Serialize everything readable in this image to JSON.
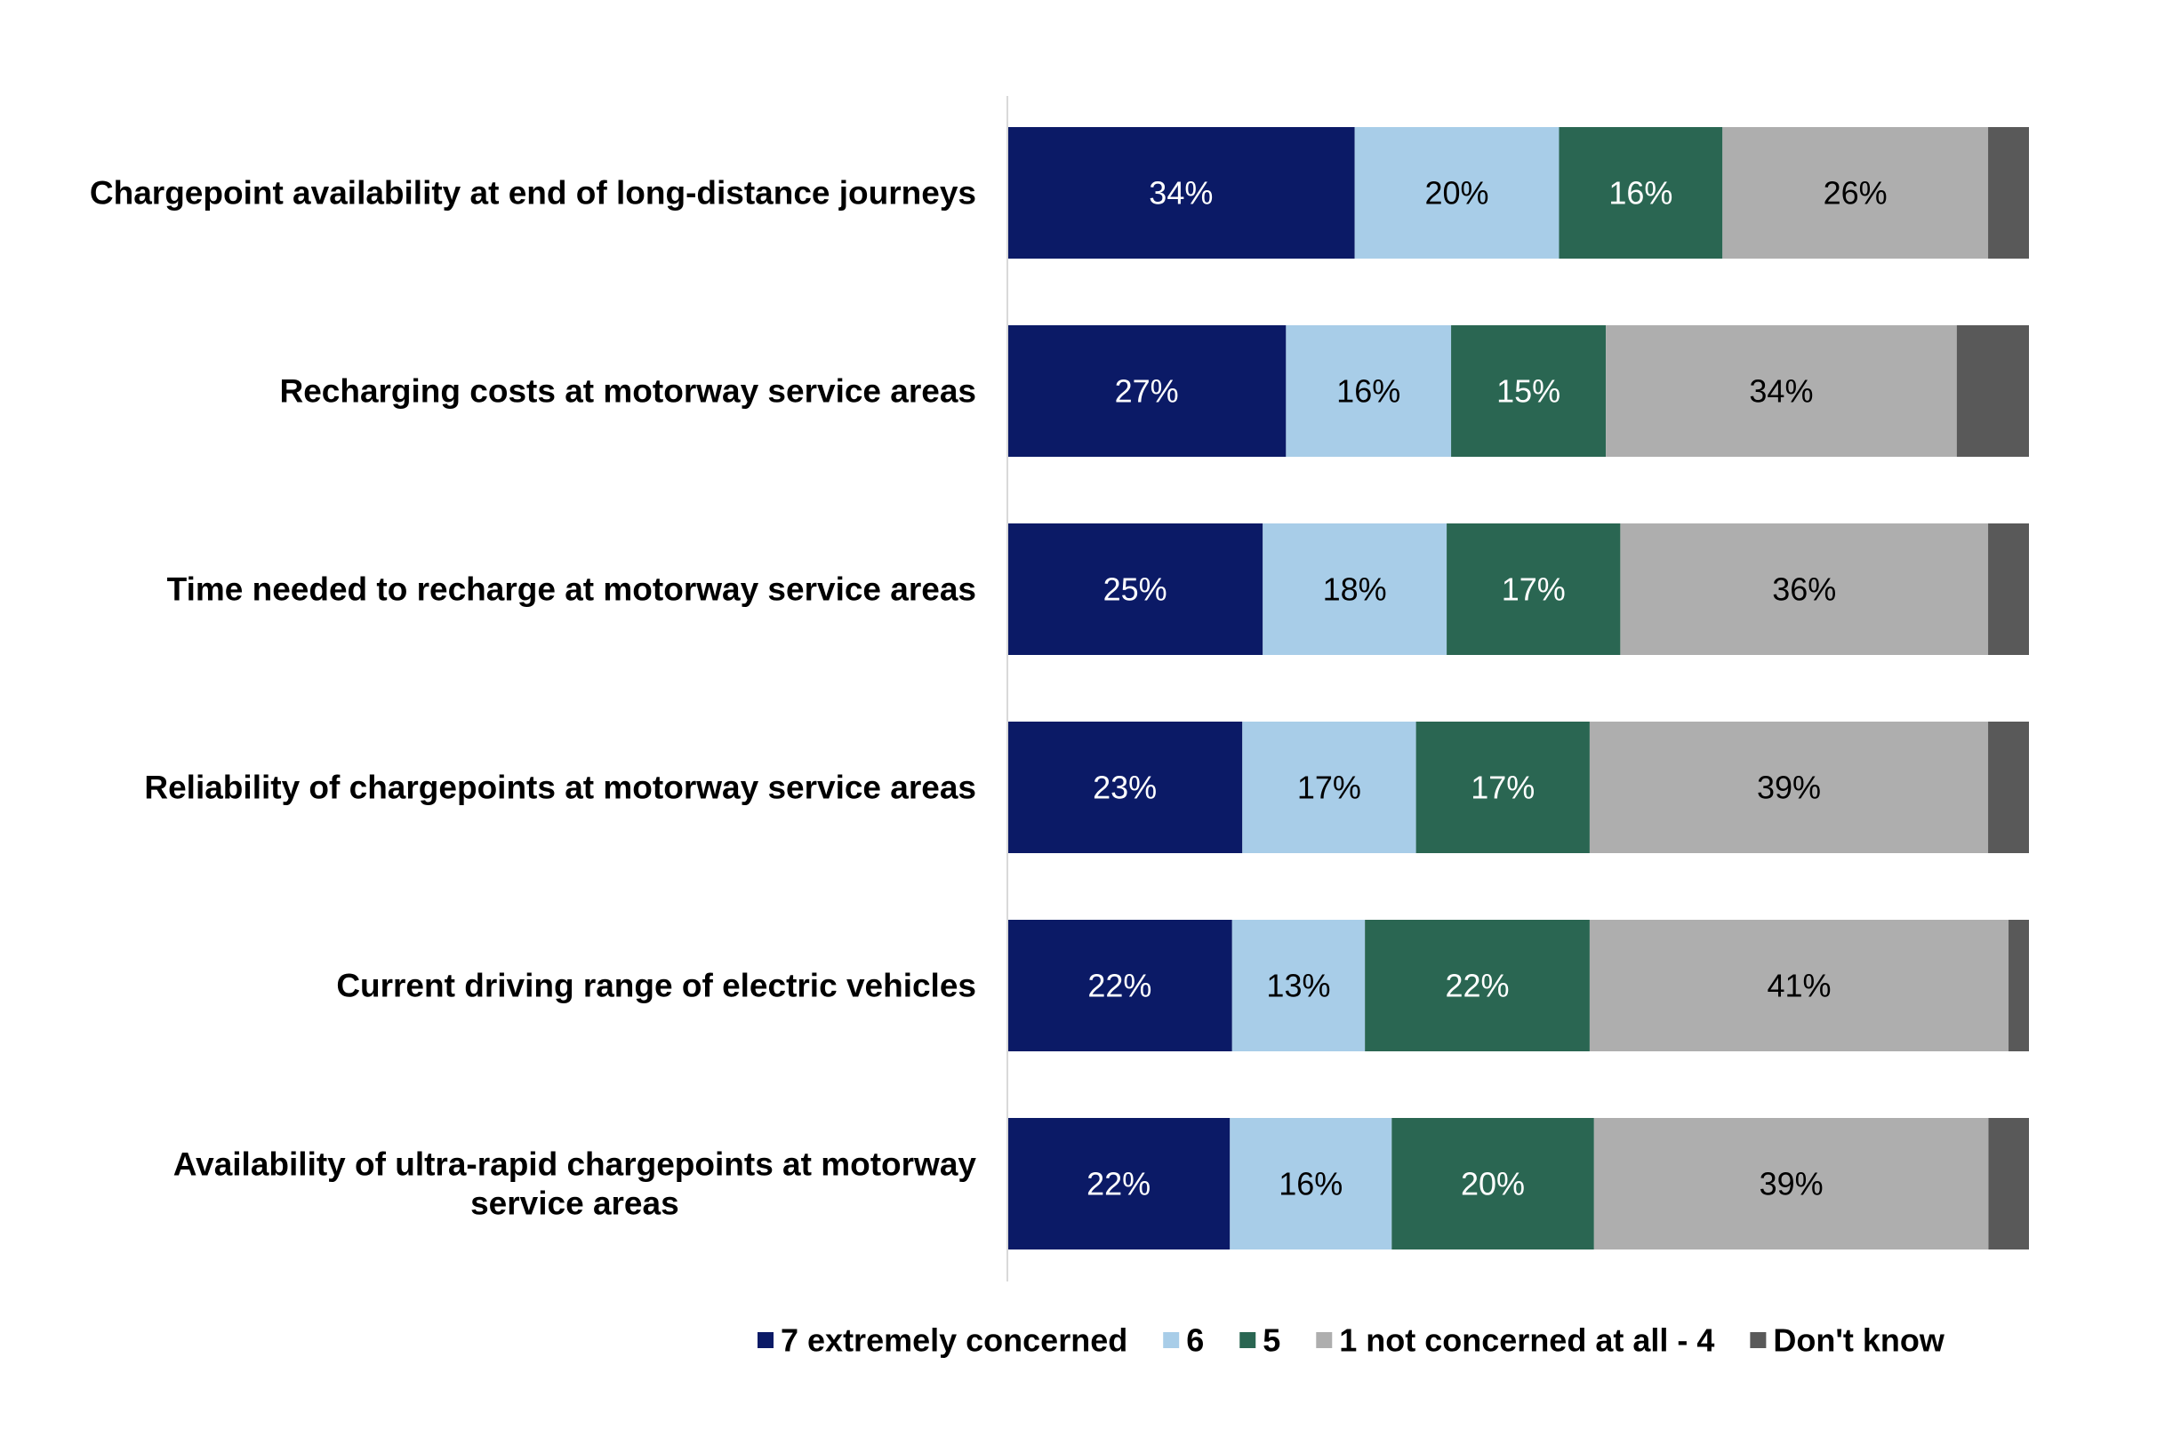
{
  "chart_data": {
    "type": "bar",
    "orientation": "horizontal",
    "stacked": true,
    "percent_stacked": true,
    "categories": [
      "Chargepoint availability at end of long-distance journeys",
      "Recharging costs at motorway service areas",
      "Time needed to recharge at motorway service areas",
      "Reliability of chargepoints at motorway service areas",
      "Current driving range of electric vehicles",
      "Availability of ultra-rapid chargepoints at motorway service areas"
    ],
    "series": [
      {
        "name": "7 extremely concerned",
        "color": "#0b1a66",
        "label_color": "#ffffff",
        "values": [
          34,
          27,
          25,
          23,
          22,
          22
        ],
        "labels": [
          "34%",
          "27%",
          "25%",
          "23%",
          "22%",
          "22%"
        ]
      },
      {
        "name": "6",
        "color": "#a8cde8",
        "label_color": "#000000",
        "values": [
          20,
          16,
          18,
          17,
          13,
          16
        ],
        "labels": [
          "20%",
          "16%",
          "18%",
          "17%",
          "13%",
          "16%"
        ]
      },
      {
        "name": "5",
        "color": "#2a6652",
        "label_color": "#ffffff",
        "values": [
          16,
          15,
          17,
          17,
          22,
          20
        ],
        "labels": [
          "16%",
          "15%",
          "17%",
          "17%",
          "22%",
          "20%"
        ]
      },
      {
        "name": "1 not concerned at all - 4",
        "color": "#aeaeae",
        "label_color": "#000000",
        "values": [
          26,
          34,
          36,
          39,
          41,
          39
        ],
        "labels": [
          "26%",
          "34%",
          "36%",
          "39%",
          "41%",
          "39%"
        ]
      },
      {
        "name": "Don't know",
        "color": "#595959",
        "label_color": "#ffffff",
        "values": [
          4,
          7,
          4,
          4,
          2,
          4
        ],
        "labels": [
          "",
          "",
          "",
          "",
          "",
          ""
        ]
      }
    ],
    "xlim": [
      0,
      100
    ],
    "grid": false,
    "legend_position": "bottom",
    "title": "",
    "xlabel": "",
    "ylabel": ""
  }
}
